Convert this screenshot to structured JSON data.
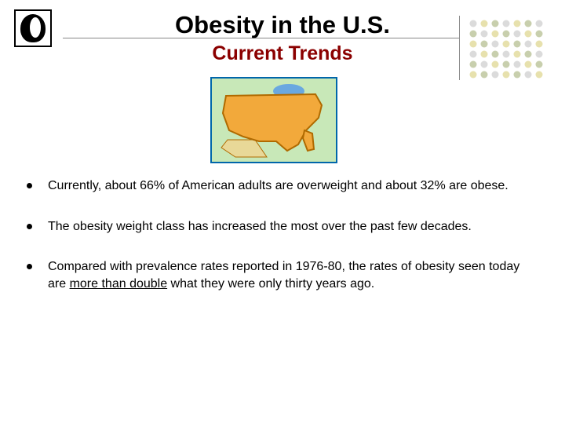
{
  "title": "Obesity in the U.S.",
  "subtitle": "Current Trends",
  "title_color": "#000000",
  "subtitle_color": "#8b0000",
  "background_color": "#ffffff",
  "logo": {
    "border_color": "#000000",
    "fill_color": "#000000",
    "bg_color": "#ffffff"
  },
  "decorative_dots": {
    "colors": [
      "#bdbdbd",
      "#d4c96a",
      "#9aa86a"
    ],
    "rows": 6,
    "cols": 7
  },
  "map": {
    "border_color": "#0066aa",
    "land_bg_color": "#c8e8b8",
    "us_fill_color": "#f2a93b",
    "us_stroke_color": "#b06a00",
    "water_color": "#6aa8e0",
    "neighbor_color": "#e8d898"
  },
  "bullets": [
    {
      "text_parts": [
        {
          "text": "Currently, about  66% of American adults are overweight and about 32% are obese.",
          "underline": false
        }
      ]
    },
    {
      "text_parts": [
        {
          "text": "The obesity weight class has increased the most over the past few decades.",
          "underline": false
        }
      ]
    },
    {
      "text_parts": [
        {
          "text": "Compared with prevalence rates reported in 1976-80, the rates of obesity seen             today are ",
          "underline": false
        },
        {
          "text": "more than double",
          "underline": true
        },
        {
          "text": " what they were only thirty years ago.",
          "underline": false
        }
      ]
    }
  ],
  "bullet_fontsize": 16,
  "bullet_color": "#000000",
  "bullet_dot_color": "#000000"
}
